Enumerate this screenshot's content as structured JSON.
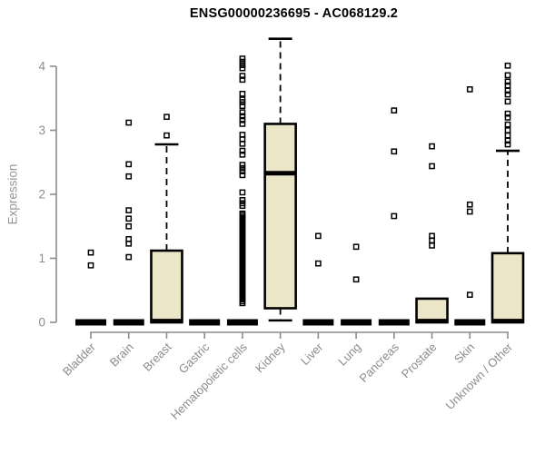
{
  "chart_data": {
    "type": "boxplot",
    "title": "ENSG00000236695 - AC068129.2",
    "ylabel": "Expression",
    "xlabel": "",
    "ylim": [
      0,
      4.5
    ],
    "yticks": [
      0,
      1,
      2,
      3,
      4
    ],
    "grid": false,
    "legend": "none",
    "x_label_rotation_deg": 45,
    "colors": {
      "box_fill": "#ece6c9",
      "box_stroke": "#000000",
      "axis": "#8c8c8c",
      "title": "#000000",
      "outlier": "#000000"
    },
    "categories": [
      "Bladder",
      "Brain",
      "Breast",
      "Gastric",
      "Hematopoietic cells",
      "Kidney",
      "Liver",
      "Lung",
      "Pancreas",
      "Prostate",
      "Skin",
      "Unknown / Other"
    ],
    "series": [
      {
        "category": "Bladder",
        "q1": 0,
        "median": 0,
        "q3": 0,
        "whisker_low": 0,
        "whisker_high": 0,
        "outliers": [
          1.09,
          0.89
        ]
      },
      {
        "category": "Brain",
        "q1": 0,
        "median": 0,
        "q3": 0,
        "whisker_low": 0,
        "whisker_high": 0,
        "outliers": [
          3.12,
          2.47,
          2.28,
          1.75,
          1.62,
          1.5,
          1.3,
          1.23,
          1.02
        ]
      },
      {
        "category": "Breast",
        "q1": 0,
        "median": 0.02,
        "q3": 1.12,
        "whisker_low": 0,
        "whisker_high": 2.78,
        "outliers": [
          3.21,
          2.92
        ]
      },
      {
        "category": "Gastric",
        "q1": 0,
        "median": 0,
        "q3": 0,
        "whisker_low": 0,
        "whisker_high": 0,
        "outliers": []
      },
      {
        "category": "Hematopoietic cells",
        "q1": 0,
        "median": 0,
        "q3": 0,
        "whisker_low": 0,
        "whisker_high": 0,
        "outliers": [
          4.12,
          4.07,
          4.02,
          3.97,
          3.85,
          3.79,
          3.57,
          3.48,
          3.44,
          3.38,
          3.28,
          3.22,
          3.16,
          3.1,
          2.93,
          2.86,
          2.79,
          2.68,
          2.62,
          2.46,
          2.41,
          2.36,
          2.3,
          2.03,
          1.91,
          1.86,
          1.82,
          1.7,
          1.68,
          1.65,
          1.62,
          1.59,
          1.56,
          1.53,
          1.5,
          1.47,
          1.44,
          1.41,
          1.38,
          1.35,
          1.32,
          1.29,
          1.26,
          1.23,
          1.2,
          1.17,
          1.14,
          1.11,
          1.08,
          1.05,
          1.02,
          0.99,
          0.96,
          0.93,
          0.9,
          0.87,
          0.84,
          0.81,
          0.78,
          0.75,
          0.72,
          0.69,
          0.66,
          0.63,
          0.6,
          0.57,
          0.54,
          0.51,
          0.48,
          0.45,
          0.42,
          0.39,
          0.36,
          0.33,
          0.3
        ]
      },
      {
        "category": "Kidney",
        "q1": 0.22,
        "median": 2.33,
        "q3": 3.1,
        "whisker_low": 0.03,
        "whisker_high": 4.43,
        "outliers": []
      },
      {
        "category": "Liver",
        "q1": 0,
        "median": 0,
        "q3": 0,
        "whisker_low": 0,
        "whisker_high": 0,
        "outliers": [
          1.35,
          0.92
        ]
      },
      {
        "category": "Lung",
        "q1": 0,
        "median": 0,
        "q3": 0,
        "whisker_low": 0,
        "whisker_high": 0,
        "outliers": [
          1.18,
          0.67
        ]
      },
      {
        "category": "Pancreas",
        "q1": 0,
        "median": 0,
        "q3": 0,
        "whisker_low": 0,
        "whisker_high": 0,
        "outliers": [
          3.31,
          2.67,
          1.66
        ]
      },
      {
        "category": "Prostate",
        "q1": 0,
        "median": 0.02,
        "q3": 0.37,
        "whisker_low": 0,
        "whisker_high": 0.37,
        "outliers": [
          2.75,
          2.44,
          1.35,
          1.28,
          1.2
        ]
      },
      {
        "category": "Skin",
        "q1": 0,
        "median": 0,
        "q3": 0,
        "whisker_low": 0,
        "whisker_high": 0,
        "outliers": [
          3.64,
          1.84,
          1.73,
          0.43
        ]
      },
      {
        "category": "Unknown / Other",
        "q1": 0,
        "median": 0.02,
        "q3": 1.08,
        "whisker_low": 0,
        "whisker_high": 2.68,
        "outliers": [
          4.01,
          3.86,
          3.76,
          3.7,
          3.62,
          3.56,
          3.45,
          3.26,
          3.2,
          3.09,
          3.0,
          2.92,
          2.84,
          2.78
        ]
      }
    ]
  }
}
